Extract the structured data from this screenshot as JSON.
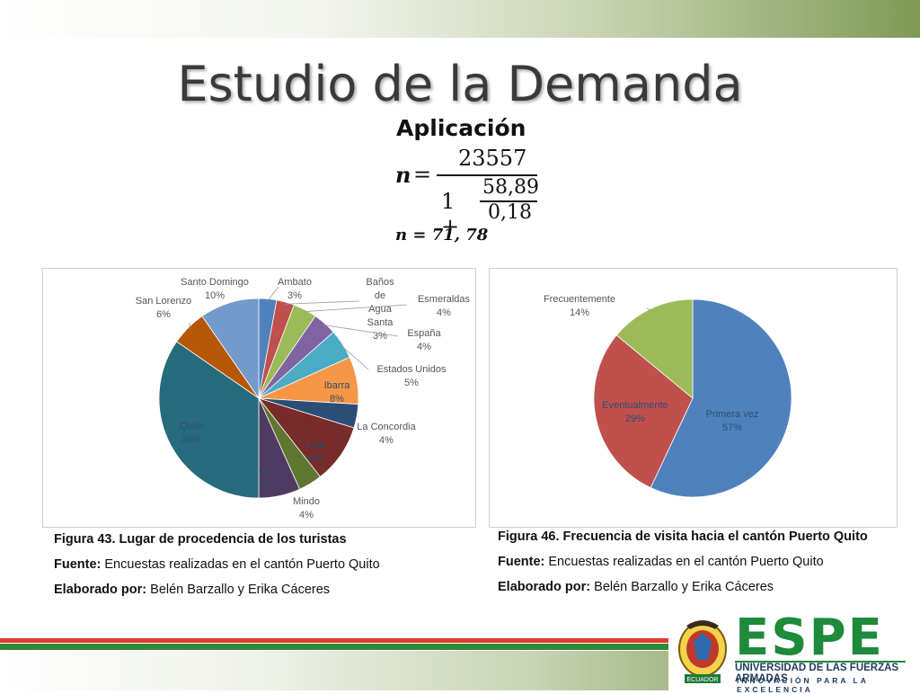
{
  "slide": {
    "title": "Estudio de la Demanda",
    "subtitle": "Aplicación",
    "formula": {
      "lhs": "n",
      "equals": "=",
      "numerator": "23557",
      "one_plus": "1 +",
      "inner_numerator": "58,89",
      "inner_denominator": "0,18",
      "result": "n = 71, 78"
    }
  },
  "chart_data": [
    {
      "type": "pie",
      "slices": [
        {
          "label": "Ambato",
          "value": 3,
          "pct_text": "3%",
          "color": "#4f81bd"
        },
        {
          "label": "Baños de Agua Santa",
          "value": 3,
          "pct_text": "3%",
          "color": "#c0504d"
        },
        {
          "label": "Esmeraldas",
          "value": 4,
          "pct_text": "4%",
          "color": "#9bbb59"
        },
        {
          "label": "España",
          "value": 4,
          "pct_text": "4%",
          "color": "#8064a2"
        },
        {
          "label": "Estados Unidos",
          "value": 5,
          "pct_text": "5%",
          "color": "#4bacc6"
        },
        {
          "label": "Ibarra",
          "value": 8,
          "pct_text": "8%",
          "color": "#f79646"
        },
        {
          "label": "La Concordia",
          "value": 4,
          "pct_text": "4%",
          "color": "#2c4d75"
        },
        {
          "label": "Loja",
          "value": 10,
          "pct_text": "10%",
          "color": "#772c2a"
        },
        {
          "label": "Mindo",
          "value": 4,
          "pct_text": "4%",
          "color": "#5f7530"
        },
        {
          "label": "Puyo",
          "value": 7,
          "pct_text": "7%",
          "color": "#4d3b62"
        },
        {
          "label": "Quito",
          "value": 36,
          "pct_text": "36%",
          "color": "#276a7c"
        },
        {
          "label": "San Lorenzo",
          "value": 6,
          "pct_text": "6%",
          "color": "#b65708"
        },
        {
          "label": "Santo Domingo",
          "value": 10,
          "pct_text": "10%",
          "color": "#729aca"
        }
      ]
    },
    {
      "type": "pie",
      "slices": [
        {
          "label": "Primera vez",
          "value": 57,
          "pct_text": "57%",
          "color": "#4f81bd"
        },
        {
          "label": "Eventualmente",
          "value": 29,
          "pct_text": "29%",
          "color": "#c0504d"
        },
        {
          "label": "Frecuentemente",
          "value": 14,
          "pct_text": "14%",
          "color": "#9bbb59"
        }
      ]
    }
  ],
  "captions": [
    {
      "figure": "Figura 43. Lugar de procedencia de los turistas",
      "source_label": "Fuente:",
      "source_text": "Encuestas realizadas en el cantón Puerto Quito",
      "author_label": "Elaborado por:",
      "author_text": "Belén Barzallo y Erika Cáceres"
    },
    {
      "figure": "Figura 46. Frecuencia de visita hacia el cantón Puerto Quito",
      "source_label": "Fuente:",
      "source_text": "Encuestas realizadas en el cantón Puerto Quito",
      "author_label": "Elaborado por:",
      "author_text": "Belén Barzallo y Erika Cáceres"
    }
  ],
  "logo": {
    "name": "ESPE",
    "line1": "UNIVERSIDAD DE LAS FUERZAS ARMADAS",
    "line2": "INNOVACIÓN PARA LA EXCELENCIA",
    "seal_text": "ECUADOR"
  }
}
